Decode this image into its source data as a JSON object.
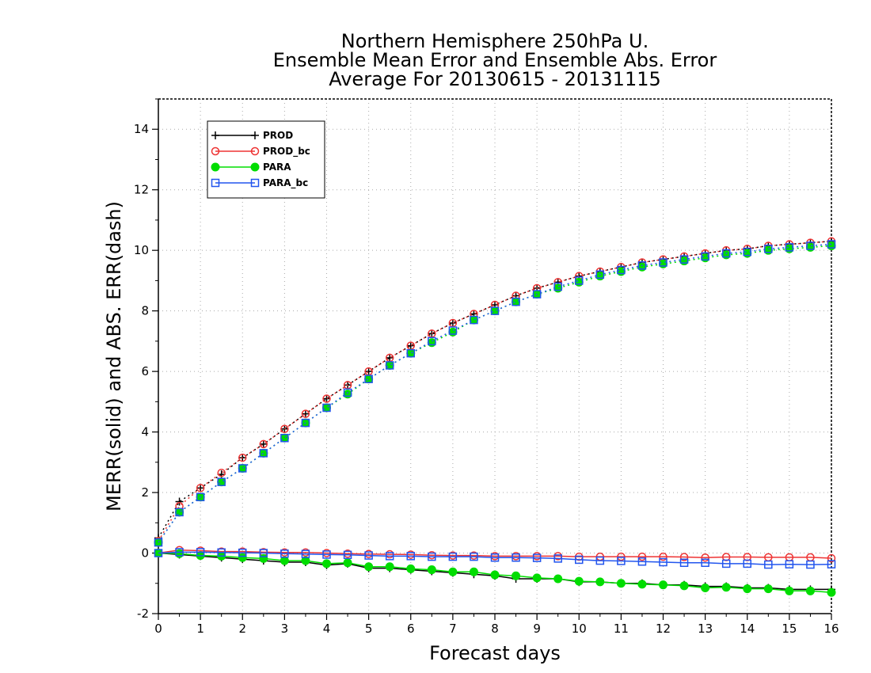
{
  "chart_data": {
    "type": "line",
    "title": [
      "Northern Hemisphere 250hPa U.",
      "Ensemble Mean Error and Ensemble Abs. Error",
      "Average For 20130615 - 20131115"
    ],
    "xlabel": "Forecast days",
    "ylabel": "MERR(solid) and ABS. ERR(dash)",
    "xlim": [
      0,
      16
    ],
    "ylim": [
      -2,
      15
    ],
    "x_ticks": [
      0,
      1,
      2,
      3,
      4,
      5,
      6,
      7,
      8,
      9,
      10,
      11,
      12,
      13,
      14,
      15,
      16
    ],
    "y_ticks": [
      -2,
      0,
      2,
      4,
      6,
      8,
      10,
      12,
      14
    ],
    "grid": true,
    "legend_position": "top-left",
    "x": [
      0,
      0.5,
      1,
      1.5,
      2,
      2.5,
      3,
      3.5,
      4,
      4.5,
      5,
      5.5,
      6,
      6.5,
      7,
      7.5,
      8,
      8.5,
      9,
      9.5,
      10,
      10.5,
      11,
      11.5,
      12,
      12.5,
      13,
      13.5,
      14,
      14.5,
      15,
      15.5,
      16
    ],
    "series": [
      {
        "name": "PROD",
        "kind": "merr",
        "color": "#000000",
        "marker": "plus",
        "values": [
          0,
          -0.05,
          -0.1,
          -0.15,
          -0.2,
          -0.25,
          -0.3,
          -0.3,
          -0.4,
          -0.35,
          -0.5,
          -0.5,
          -0.55,
          -0.6,
          -0.65,
          -0.7,
          -0.75,
          -0.85,
          -0.85,
          -0.85,
          -0.95,
          -0.95,
          -1.0,
          -1.0,
          -1.05,
          -1.05,
          -1.1,
          -1.1,
          -1.15,
          -1.15,
          -1.2,
          -1.2,
          -1.2
        ]
      },
      {
        "name": "PROD_bc",
        "kind": "merr",
        "color": "#ee3333",
        "marker": "circle",
        "values": [
          0,
          0.1,
          0.08,
          0.05,
          0.05,
          0.03,
          0.02,
          0.02,
          0,
          -0.02,
          -0.03,
          -0.04,
          -0.05,
          -0.07,
          -0.08,
          -0.08,
          -0.1,
          -0.1,
          -0.1,
          -0.1,
          -0.12,
          -0.12,
          -0.12,
          -0.12,
          -0.12,
          -0.13,
          -0.15,
          -0.13,
          -0.13,
          -0.14,
          -0.14,
          -0.14,
          -0.17
        ]
      },
      {
        "name": "PARA",
        "kind": "merr",
        "color": "#00dd00",
        "marker": "dot",
        "values": [
          0,
          -0.02,
          -0.08,
          -0.1,
          -0.15,
          -0.18,
          -0.25,
          -0.25,
          -0.35,
          -0.32,
          -0.45,
          -0.45,
          -0.52,
          -0.55,
          -0.62,
          -0.62,
          -0.72,
          -0.75,
          -0.82,
          -0.85,
          -0.93,
          -0.95,
          -1.0,
          -1.03,
          -1.05,
          -1.08,
          -1.15,
          -1.13,
          -1.18,
          -1.18,
          -1.25,
          -1.25,
          -1.3
        ]
      },
      {
        "name": "PARA_bc",
        "kind": "merr",
        "color": "#2255ee",
        "marker": "square",
        "values": [
          0,
          0.03,
          0.03,
          0.02,
          0.01,
          0,
          -0.02,
          -0.03,
          -0.05,
          -0.06,
          -0.08,
          -0.1,
          -0.1,
          -0.12,
          -0.12,
          -0.12,
          -0.15,
          -0.15,
          -0.16,
          -0.18,
          -0.22,
          -0.25,
          -0.26,
          -0.28,
          -0.3,
          -0.32,
          -0.32,
          -0.35,
          -0.35,
          -0.38,
          -0.37,
          -0.38,
          -0.37
        ]
      },
      {
        "name": "PROD",
        "kind": "abserr",
        "color": "#000000",
        "marker": "plus",
        "dash": "2,4",
        "values": [
          0.5,
          1.7,
          2.15,
          2.6,
          3.15,
          3.6,
          4.1,
          4.6,
          5.1,
          5.55,
          6.0,
          6.45,
          6.85,
          7.25,
          7.6,
          7.9,
          8.2,
          8.5,
          8.75,
          8.95,
          9.15,
          9.3,
          9.45,
          9.6,
          9.7,
          9.8,
          9.9,
          10.0,
          10.05,
          10.15,
          10.2,
          10.25,
          10.3
        ]
      },
      {
        "name": "PROD_bc",
        "kind": "abserr",
        "color": "#ee3333",
        "marker": "circle",
        "dash": "2,4",
        "values": [
          0.4,
          1.55,
          2.15,
          2.65,
          3.15,
          3.6,
          4.1,
          4.6,
          5.1,
          5.55,
          6.0,
          6.45,
          6.85,
          7.25,
          7.6,
          7.9,
          8.2,
          8.5,
          8.75,
          8.95,
          9.15,
          9.3,
          9.45,
          9.6,
          9.7,
          9.8,
          9.9,
          10.0,
          10.05,
          10.15,
          10.2,
          10.25,
          10.3
        ]
      },
      {
        "name": "PARA",
        "kind": "abserr",
        "color": "#00dd00",
        "marker": "dot",
        "dash": "2,4",
        "values": [
          0.35,
          1.35,
          1.85,
          2.35,
          2.8,
          3.3,
          3.8,
          4.3,
          4.8,
          5.25,
          5.75,
          6.2,
          6.6,
          6.95,
          7.3,
          7.7,
          8.0,
          8.3,
          8.55,
          8.75,
          8.95,
          9.15,
          9.3,
          9.45,
          9.55,
          9.65,
          9.75,
          9.85,
          9.9,
          10.0,
          10.05,
          10.1,
          10.15
        ]
      },
      {
        "name": "PARA_bc",
        "kind": "abserr",
        "color": "#2255ee",
        "marker": "square",
        "dash": "2,4",
        "values": [
          0.35,
          1.35,
          1.85,
          2.35,
          2.8,
          3.3,
          3.8,
          4.3,
          4.8,
          5.3,
          5.75,
          6.2,
          6.6,
          7.0,
          7.35,
          7.7,
          8.0,
          8.3,
          8.55,
          8.8,
          9.0,
          9.2,
          9.35,
          9.5,
          9.6,
          9.7,
          9.8,
          9.9,
          9.95,
          10.05,
          10.1,
          10.15,
          10.2
        ]
      }
    ],
    "legend": [
      {
        "label": "PROD",
        "color": "#000000",
        "marker": "plus"
      },
      {
        "label": "PROD_bc",
        "color": "#ee3333",
        "marker": "circle"
      },
      {
        "label": "PARA",
        "color": "#00dd00",
        "marker": "dot"
      },
      {
        "label": "PARA_bc",
        "color": "#2255ee",
        "marker": "square"
      }
    ]
  }
}
